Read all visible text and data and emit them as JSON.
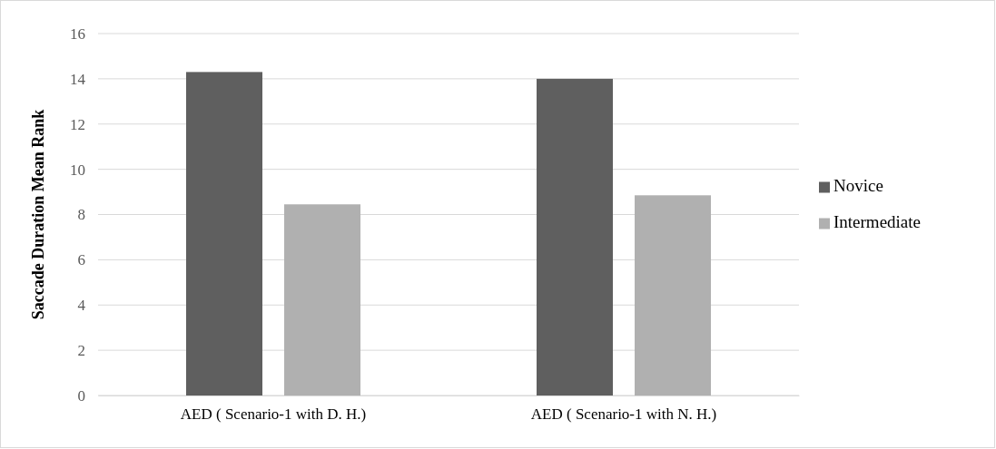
{
  "chart_data": {
    "type": "bar",
    "ylabel": "Saccade Duration Mean Rank",
    "categories": [
      "AED ( Scenario-1 with D. H.)",
      "AED ( Scenario-1 with N. H.)"
    ],
    "series": [
      {
        "name": "Novice",
        "color": "#5f5f5f",
        "values": [
          14.3,
          14.0
        ]
      },
      {
        "name": "Intermediate",
        "color": "#b0b0b0",
        "values": [
          8.45,
          8.85
        ]
      }
    ],
    "ylim": [
      0,
      16
    ],
    "yticks": [
      0,
      2,
      4,
      6,
      8,
      10,
      12,
      14,
      16
    ],
    "grid": "y",
    "legend": "right"
  }
}
